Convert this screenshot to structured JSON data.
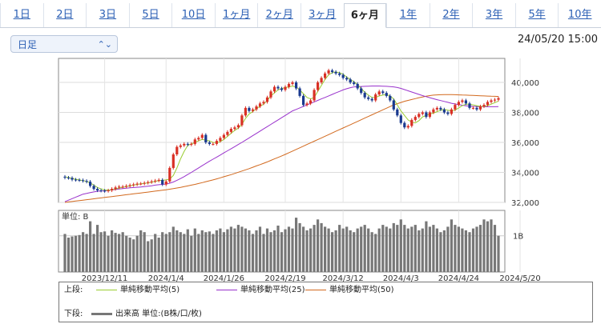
{
  "tabs": [
    "1日",
    "2日",
    "3日",
    "5日",
    "10日",
    "1ヶ月",
    "2ヶ月",
    "3ヶ月",
    "6ヶ月",
    "1年",
    "2年",
    "3年",
    "5年",
    "10年"
  ],
  "active_tab": "6ヶ月",
  "period_select": "日足",
  "timestamp": "24/05/20 15:00",
  "colors": {
    "up": "#d93025",
    "down": "#1a3a8f",
    "ma5": "#9acd32",
    "ma25": "#9932cc",
    "ma50": "#d2691e",
    "volume": "#777777"
  },
  "chart_data": {
    "type": "candlestick",
    "price_ticks": [
      "40,000",
      "38,000",
      "36,000",
      "34,000",
      "32,000"
    ],
    "price_tick_values": [
      40000,
      38000,
      36000,
      34000,
      32000
    ],
    "price_range": [
      32000,
      41600
    ],
    "x_tick_labels": [
      "2023/12/11",
      "2024/1/4",
      "2024/1/26",
      "2024/2/19",
      "2024/3/12",
      "2024/4/3",
      "2024/4/24",
      "2024/5/20"
    ],
    "x_tick_index": [
      11,
      28,
      44,
      61,
      77,
      93,
      109,
      126
    ],
    "close": [
      33650,
      33630,
      33520,
      33500,
      33480,
      33430,
      33380,
      33100,
      32900,
      32800,
      32780,
      32760,
      32800,
      32900,
      33000,
      33050,
      33050,
      33100,
      33150,
      33200,
      33250,
      33250,
      33300,
      33350,
      33400,
      33450,
      33500,
      33200,
      33400,
      34300,
      35200,
      35700,
      35800,
      35900,
      35850,
      35900,
      36200,
      36300,
      36500,
      36000,
      35900,
      35900,
      36100,
      36300,
      36500,
      36700,
      36900,
      37000,
      37150,
      37800,
      38300,
      38100,
      38200,
      38400,
      38600,
      38700,
      39000,
      39400,
      39700,
      39600,
      39500,
      39700,
      39900,
      40000,
      39600,
      39100,
      38500,
      38600,
      38800,
      39500,
      40000,
      40300,
      40600,
      40800,
      40700,
      40600,
      40500,
      40300,
      40200,
      40000,
      39900,
      39600,
      39300,
      39000,
      38900,
      38800,
      39200,
      39400,
      39300,
      39100,
      38800,
      38200,
      37800,
      37300,
      37000,
      37100,
      37500,
      37700,
      37900,
      38000,
      37700,
      38000,
      38200,
      38300,
      38200,
      38000,
      37900,
      38200,
      38500,
      38700,
      38800,
      38600,
      38300,
      38300,
      38200,
      38400,
      38500,
      38700,
      38800,
      38850,
      38950
    ],
    "ma5": [
      33700,
      33660,
      33600,
      33540,
      33500,
      33450,
      33400,
      33300,
      33150,
      33000,
      32900,
      32830,
      32810,
      32840,
      32900,
      32960,
      33010,
      33050,
      33100,
      33150,
      33200,
      33240,
      33270,
      33300,
      33350,
      33400,
      33450,
      33470,
      33500,
      33550,
      33800,
      34300,
      34900,
      35400,
      35800,
      35900,
      36000,
      36100,
      36200,
      36150,
      36100,
      36000,
      35980,
      36050,
      36200,
      36400,
      36600,
      36800,
      36950,
      37200,
      37600,
      37900,
      38050,
      38250,
      38400,
      38550,
      38800,
      39100,
      39300,
      39500,
      39600,
      39650,
      39700,
      39750,
      39700,
      39500,
      39250,
      39000,
      38900,
      39000,
      39400,
      39800,
      40200,
      40500,
      40650,
      40700,
      40650,
      40550,
      40350,
      40200,
      40050,
      39850,
      39600,
      39350,
      39150,
      39000,
      39000,
      39100,
      39150,
      39200,
      39100,
      38900,
      38500,
      38100,
      37800,
      37500,
      37350,
      37300,
      37450,
      37700,
      37800,
      37900,
      37950,
      38050,
      38150,
      38200,
      38150,
      38100,
      38150,
      38300,
      38450,
      38550,
      38550,
      38500,
      38450,
      38400,
      38400,
      38450,
      38550,
      38650,
      38750
    ],
    "ma25": [
      32050,
      32150,
      32250,
      32350,
      32450,
      32550,
      32600,
      32650,
      32700,
      32740,
      32760,
      32780,
      32800,
      32830,
      32860,
      32890,
      32920,
      32950,
      32970,
      32990,
      33010,
      33030,
      33050,
      33080,
      33110,
      33150,
      33180,
      33200,
      33220,
      33280,
      33360,
      33470,
      33590,
      33720,
      33860,
      34000,
      34150,
      34300,
      34450,
      34600,
      34740,
      34880,
      35020,
      35160,
      35300,
      35440,
      35580,
      35720,
      35860,
      36000,
      36150,
      36300,
      36450,
      36600,
      36750,
      36900,
      37050,
      37200,
      37350,
      37500,
      37650,
      37800,
      37950,
      38100,
      38200,
      38300,
      38400,
      38500,
      38600,
      38700,
      38800,
      38900,
      39000,
      39100,
      39200,
      39300,
      39400,
      39500,
      39580,
      39650,
      39700,
      39720,
      39730,
      39740,
      39750,
      39760,
      39760,
      39760,
      39750,
      39740,
      39720,
      39700,
      39660,
      39600,
      39520,
      39440,
      39360,
      39280,
      39200,
      39120,
      39050,
      38980,
      38910,
      38850,
      38790,
      38730,
      38670,
      38610,
      38560,
      38520,
      38480,
      38440,
      38420,
      38400,
      38390,
      38380,
      38380,
      38380,
      38380,
      38380,
      38390
    ],
    "ma50": [
      32000,
      32030,
      32060,
      32090,
      32120,
      32150,
      32180,
      32210,
      32240,
      32270,
      32300,
      32330,
      32360,
      32390,
      32420,
      32450,
      32480,
      32510,
      32540,
      32570,
      32600,
      32630,
      32660,
      32690,
      32720,
      32750,
      32780,
      32810,
      32840,
      32880,
      32920,
      32960,
      33000,
      33050,
      33100,
      33150,
      33200,
      33260,
      33320,
      33380,
      33440,
      33500,
      33570,
      33640,
      33710,
      33780,
      33850,
      33930,
      34010,
      34090,
      34170,
      34250,
      34340,
      34430,
      34520,
      34610,
      34700,
      34800,
      34900,
      35000,
      35100,
      35200,
      35310,
      35420,
      35530,
      35640,
      35750,
      35860,
      35970,
      36080,
      36190,
      36300,
      36410,
      36520,
      36630,
      36740,
      36850,
      36960,
      37070,
      37180,
      37290,
      37400,
      37510,
      37620,
      37730,
      37840,
      37950,
      38060,
      38170,
      38280,
      38390,
      38500,
      38580,
      38660,
      38740,
      38800,
      38860,
      38920,
      38980,
      39030,
      39080,
      39120,
      39150,
      39170,
      39180,
      39190,
      39190,
      39190,
      39180,
      39170,
      39160,
      39150,
      39140,
      39130,
      39120,
      39110,
      39100,
      39090,
      39080,
      39070,
      39060
    ],
    "volume_label": "1B",
    "volume": [
      1.05,
      0.95,
      0.98,
      1.0,
      1.02,
      1.1,
      1.05,
      1.4,
      1.05,
      1.3,
      1.1,
      1.12,
      1.0,
      1.15,
      1.08,
      1.05,
      1.1,
      1.0,
      0.95,
      0.9,
      1.0,
      1.15,
      1.1,
      0.85,
      0.9,
      1.05,
      0.95,
      1.1,
      1.05,
      1.1,
      1.25,
      1.15,
      1.1,
      1.05,
      1.18,
      1.0,
      1.2,
      1.05,
      1.15,
      1.1,
      1.12,
      1.05,
      1.15,
      1.2,
      1.1,
      1.18,
      1.25,
      1.2,
      1.3,
      1.25,
      1.2,
      1.15,
      1.05,
      1.15,
      1.25,
      1.05,
      1.2,
      1.1,
      1.15,
      1.28,
      1.1,
      1.18,
      1.25,
      1.2,
      1.5,
      1.35,
      1.25,
      1.15,
      1.2,
      1.3,
      1.45,
      1.35,
      1.25,
      1.2,
      1.1,
      1.15,
      1.3,
      1.2,
      1.25,
      1.15,
      1.1,
      1.2,
      1.25,
      1.3,
      1.2,
      1.1,
      1.05,
      1.2,
      1.3,
      1.25,
      1.2,
      1.35,
      1.3,
      1.45,
      1.3,
      1.2,
      1.25,
      1.3,
      1.15,
      1.2,
      1.4,
      1.25,
      1.3,
      1.2,
      1.1,
      1.15,
      1.25,
      1.45,
      1.3,
      1.25,
      1.2,
      1.15,
      1.1,
      1.2,
      1.25,
      1.3,
      1.45,
      1.4,
      1.45,
      1.3,
      1.0
    ]
  },
  "volume_panel_label": "単位: B",
  "legend": {
    "upper_label": "上段:",
    "ma5": "単純移動平均(5)",
    "ma25": "単純移動平均(25)",
    "ma50": "単純移動平均(50)",
    "lower_label": "下段:",
    "volume": "出来高 単位:(B株/口/枚)"
  }
}
